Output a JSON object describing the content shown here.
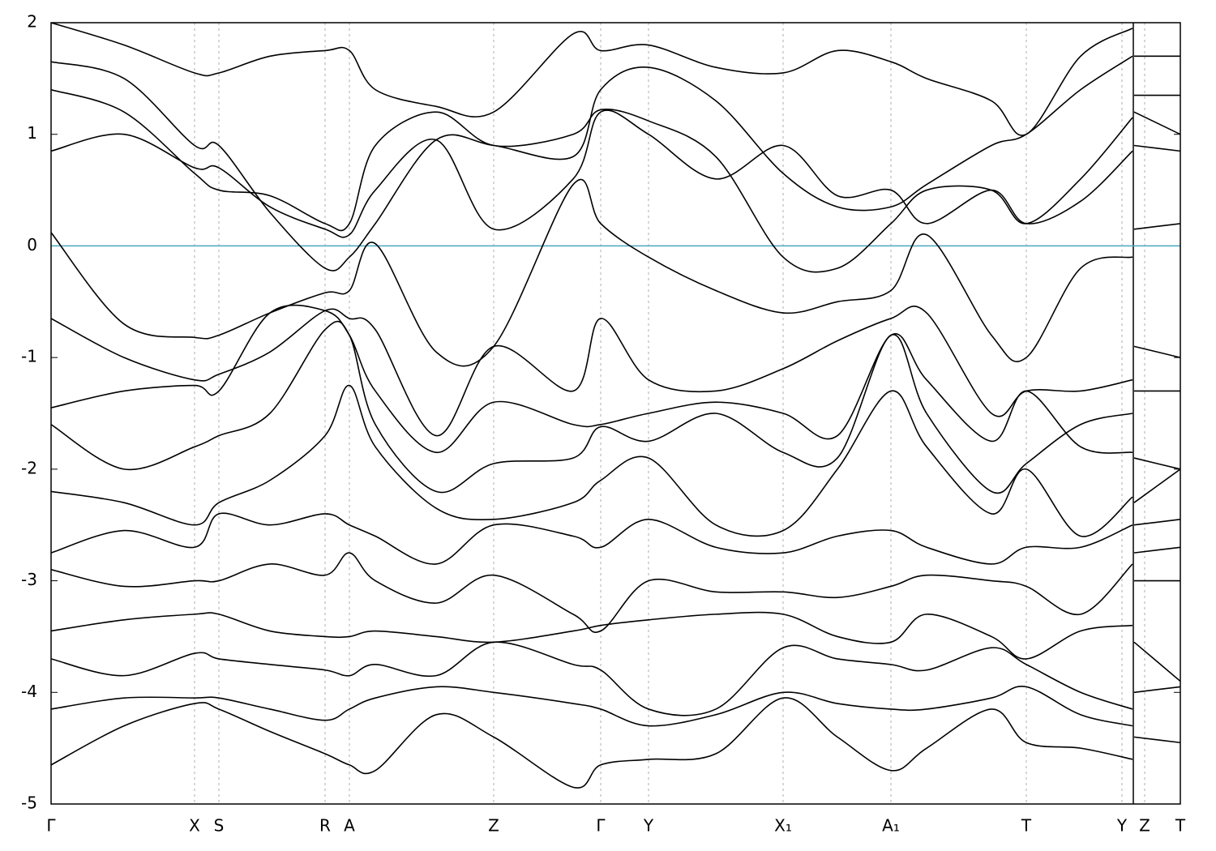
{
  "chart_data": {
    "type": "line",
    "x": [
      0,
      0.9,
      1.77,
      2.07,
      2.7,
      3.38,
      3.68,
      4.0,
      4.75,
      5.46,
      6.44,
      6.78,
      7.37,
      8.2,
      9.03,
      9.7,
      10.36,
      10.8,
      11.6,
      12.03,
      12.7,
      13.34,
      13.35,
      13.36,
      13.93
    ],
    "xlim": [
      0,
      13.93
    ],
    "xticks": [
      {
        "value": 0,
        "label": "Γ"
      },
      {
        "value": 1.77,
        "label": "X"
      },
      {
        "value": 2.07,
        "label": "S"
      },
      {
        "value": 3.38,
        "label": "R"
      },
      {
        "value": 3.68,
        "label": "A"
      },
      {
        "value": 5.46,
        "label": "Z"
      },
      {
        "value": 6.78,
        "label": "Γ"
      },
      {
        "value": 7.37,
        "label": "Y"
      },
      {
        "value": 9.03,
        "label": "X₁"
      },
      {
        "value": 10.36,
        "label": "A₁"
      },
      {
        "value": 12.03,
        "label": "T"
      },
      {
        "value": 13.21,
        "label": "Y"
      },
      {
        "value": 13.49,
        "label": "Z"
      },
      {
        "value": 13.93,
        "label": "T"
      }
    ],
    "ylim": [
      -5,
      2
    ],
    "yticks": [
      -5,
      -4,
      -3,
      -2,
      -1,
      0,
      1,
      2
    ],
    "grid": "x",
    "fermi_level": 0,
    "fermi_color": "#4aa8c0",
    "series": [
      {
        "color": "#000000",
        "values": [
          0.12,
          -0.7,
          -0.82,
          -0.8,
          -0.6,
          -0.42,
          -0.4,
          0.02,
          -0.95,
          -0.9,
          0.55,
          0.2,
          -0.1,
          -0.4,
          -0.6,
          -0.5,
          -0.4,
          0.1,
          -0.8,
          -1.0,
          -0.2,
          -0.1,
          null,
          0.15,
          0.2
        ]
      },
      {
        "color": "#000000",
        "values": [
          -0.65,
          -1.0,
          -1.2,
          -1.15,
          -0.95,
          -0.58,
          -0.65,
          -0.75,
          -1.7,
          -0.9,
          -1.3,
          -0.65,
          -1.2,
          -1.3,
          -1.1,
          -0.85,
          -0.65,
          -0.6,
          -1.5,
          -1.3,
          -1.3,
          -1.2,
          null,
          -0.9,
          -1.0
        ]
      },
      {
        "color": "#000000",
        "values": [
          0.85,
          1.0,
          0.7,
          0.7,
          0.35,
          0.15,
          0.1,
          0.5,
          0.95,
          0.15,
          0.6,
          1.2,
          1.0,
          0.6,
          0.9,
          0.45,
          0.5,
          0.2,
          0.5,
          0.2,
          0.4,
          0.85,
          null,
          0.9,
          0.85
        ]
      },
      {
        "color": "#000000",
        "values": [
          1.4,
          1.2,
          0.65,
          0.5,
          0.45,
          0.2,
          0.2,
          0.9,
          1.2,
          0.9,
          1.0,
          1.22,
          1.12,
          0.8,
          -0.1,
          -0.2,
          0.2,
          0.5,
          0.5,
          0.2,
          0.6,
          1.15,
          null,
          1.2,
          1.0
        ]
      },
      {
        "color": "#000000",
        "values": [
          1.65,
          1.5,
          0.9,
          0.9,
          0.3,
          -0.2,
          -0.1,
          0.2,
          0.95,
          0.9,
          0.8,
          1.4,
          1.6,
          1.3,
          0.65,
          0.35,
          0.35,
          0.55,
          0.9,
          1.0,
          1.4,
          1.7,
          null,
          1.35,
          1.35
        ]
      },
      {
        "color": "#000000",
        "values": [
          2.0,
          1.8,
          1.55,
          1.55,
          1.7,
          1.75,
          1.75,
          1.4,
          1.25,
          1.2,
          1.9,
          1.75,
          1.8,
          1.6,
          1.55,
          1.75,
          1.65,
          1.5,
          1.3,
          1.0,
          1.7,
          1.95,
          null,
          1.7,
          1.7
        ]
      },
      {
        "color": "#000000",
        "values": [
          -1.45,
          -1.3,
          -1.25,
          -1.3,
          -0.6,
          -0.58,
          -0.8,
          -1.3,
          -1.85,
          -1.4,
          -1.6,
          -1.6,
          -1.5,
          -1.4,
          -1.5,
          -1.7,
          -0.8,
          -1.2,
          -1.75,
          -1.3,
          -1.8,
          -1.85,
          null,
          -1.3,
          -1.3
        ]
      },
      {
        "color": "#000000",
        "values": [
          -1.6,
          -2.0,
          -1.8,
          -1.7,
          -1.5,
          -0.75,
          -0.8,
          -1.6,
          -2.2,
          -1.95,
          -1.9,
          -1.62,
          -1.75,
          -1.5,
          -1.85,
          -1.9,
          -0.8,
          -1.5,
          -2.2,
          -1.95,
          -1.6,
          -1.5,
          null,
          -1.9,
          -2.0
        ]
      },
      {
        "color": "#000000",
        "values": [
          -2.2,
          -2.3,
          -2.5,
          -2.3,
          -2.1,
          -1.7,
          -1.25,
          -1.8,
          -2.35,
          -2.45,
          -2.3,
          -2.1,
          -1.9,
          -2.5,
          -2.55,
          -2.0,
          -1.3,
          -1.8,
          -2.4,
          -2.0,
          -2.6,
          -2.25,
          null,
          -2.3,
          -2.0
        ]
      },
      {
        "color": "#000000",
        "values": [
          -2.75,
          -2.55,
          -2.7,
          -2.4,
          -2.5,
          -2.4,
          -2.5,
          -2.6,
          -2.85,
          -2.5,
          -2.6,
          -2.7,
          -2.45,
          -2.7,
          -2.75,
          -2.6,
          -2.55,
          -2.7,
          -2.85,
          -2.7,
          -2.7,
          -2.5,
          null,
          -2.5,
          -2.45
        ]
      },
      {
        "color": "#000000",
        "values": [
          -2.9,
          -3.05,
          -3.0,
          -3.0,
          -2.85,
          -2.95,
          -2.75,
          -3.0,
          -3.2,
          -2.95,
          -3.3,
          -3.45,
          -3.0,
          -3.1,
          -3.1,
          -3.15,
          -3.05,
          -2.95,
          -3.0,
          -3.05,
          -3.3,
          -2.85,
          null,
          -2.75,
          -2.7
        ]
      },
      {
        "color": "#000000",
        "values": [
          -3.45,
          -3.35,
          -3.3,
          -3.3,
          -3.45,
          -3.5,
          -3.5,
          -3.45,
          -3.5,
          -3.55,
          -3.45,
          -3.4,
          -3.35,
          -3.3,
          -3.3,
          -3.5,
          -3.55,
          -3.3,
          -3.5,
          -3.7,
          -3.45,
          -3.4,
          null,
          -3.0,
          -3.0
        ]
      },
      {
        "color": "#000000",
        "values": [
          -3.7,
          -3.85,
          -3.65,
          -3.7,
          -3.75,
          -3.8,
          -3.85,
          -3.75,
          -3.85,
          -3.55,
          -3.75,
          -3.8,
          -4.15,
          -4.15,
          -3.6,
          -3.7,
          -3.75,
          -3.8,
          -3.6,
          -3.75,
          -4.0,
          -4.15,
          null,
          -3.55,
          -3.9
        ]
      },
      {
        "color": "#000000",
        "values": [
          -4.15,
          -4.05,
          -4.05,
          -4.05,
          -4.15,
          -4.25,
          -4.15,
          -4.05,
          -3.95,
          -4.0,
          -4.1,
          -4.15,
          -4.3,
          -4.2,
          -4.0,
          -4.1,
          -4.15,
          -4.15,
          -4.05,
          -3.95,
          -4.2,
          -4.3,
          null,
          -4.0,
          -3.95
        ]
      },
      {
        "color": "#000000",
        "values": [
          -4.65,
          -4.3,
          -4.1,
          -4.15,
          -4.35,
          -4.55,
          -4.65,
          -4.7,
          -4.2,
          -4.4,
          -4.85,
          -4.65,
          -4.6,
          -4.55,
          -4.05,
          -4.4,
          -4.7,
          -4.5,
          -4.15,
          -4.45,
          -4.5,
          -4.6,
          null,
          -4.4,
          -4.45
        ]
      }
    ]
  }
}
